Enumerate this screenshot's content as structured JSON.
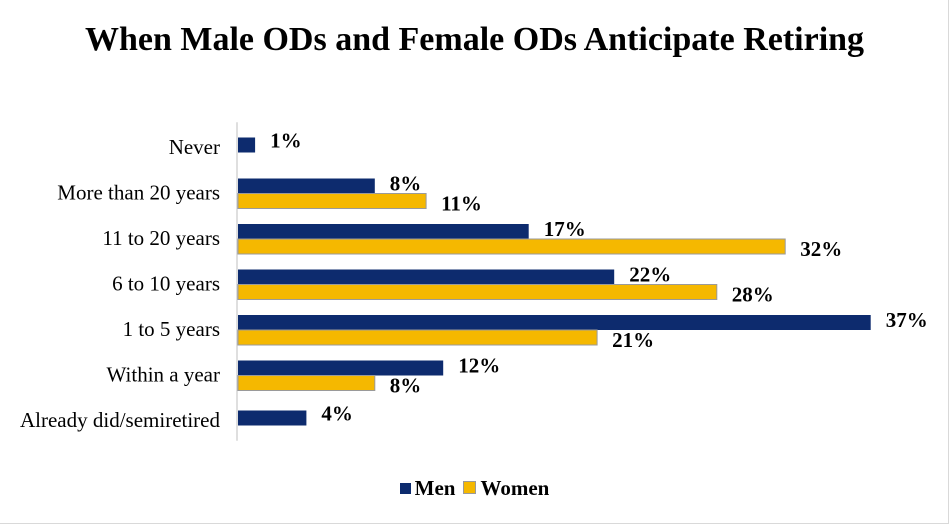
{
  "chart_data": {
    "type": "bar",
    "orientation": "horizontal",
    "title": "When Male ODs and Female ODs Anticipate Retiring",
    "categories": [
      "Never",
      "More than 20 years",
      "11 to 20 years",
      "6 to 10 years",
      "1 to 5 years",
      "Within a year",
      "Already did/semiretired"
    ],
    "series": [
      {
        "name": "Men",
        "color": "#0d2b6e",
        "values": [
          1,
          8,
          17,
          22,
          37,
          12,
          4
        ]
      },
      {
        "name": "Women",
        "color": "#f5b800",
        "values": [
          null,
          11,
          32,
          28,
          21,
          8,
          null
        ]
      }
    ],
    "value_suffix": "%",
    "xlim": [
      0,
      40
    ],
    "grid": false,
    "legend_position": "bottom"
  }
}
